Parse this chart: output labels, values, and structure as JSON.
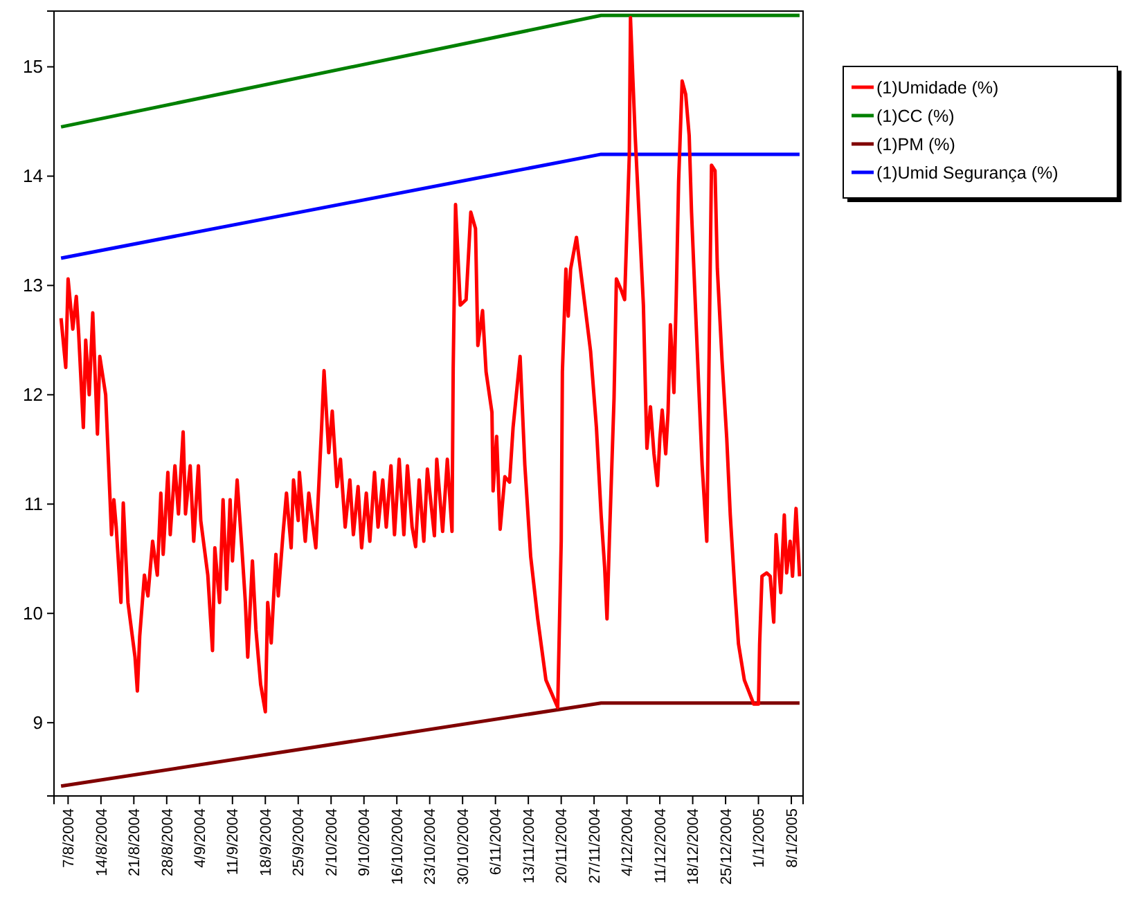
{
  "chart_data": {
    "type": "line",
    "xlim": [
      "2004-08-04",
      "2005-01-10T12:00"
    ],
    "ylim": [
      8.33,
      15.51
    ],
    "yticks": [
      9,
      10,
      11,
      12,
      13,
      14,
      15
    ],
    "xticks": [
      {
        "value": "2004-08-07",
        "label": "7/8/2004"
      },
      {
        "value": "2004-08-14",
        "label": "14/8/2004"
      },
      {
        "value": "2004-08-21",
        "label": "21/8/2004"
      },
      {
        "value": "2004-08-28",
        "label": "28/8/2004"
      },
      {
        "value": "2004-09-04",
        "label": "4/9/2004"
      },
      {
        "value": "2004-09-11",
        "label": "11/9/2004"
      },
      {
        "value": "2004-09-18",
        "label": "18/9/2004"
      },
      {
        "value": "2004-09-25",
        "label": "25/9/2004"
      },
      {
        "value": "2004-10-02",
        "label": "2/10/2004"
      },
      {
        "value": "2004-10-09",
        "label": "9/10/2004"
      },
      {
        "value": "2004-10-16",
        "label": "16/10/2004"
      },
      {
        "value": "2004-10-23",
        "label": "23/10/2004"
      },
      {
        "value": "2004-10-30",
        "label": "30/10/2004"
      },
      {
        "value": "2004-11-06",
        "label": "6/11/2004"
      },
      {
        "value": "2004-11-13",
        "label": "13/11/2004"
      },
      {
        "value": "2004-11-20",
        "label": "20/11/2004"
      },
      {
        "value": "2004-11-27",
        "label": "27/11/2004"
      },
      {
        "value": "2004-12-04",
        "label": "4/12/2004"
      },
      {
        "value": "2004-12-11",
        "label": "11/12/2004"
      },
      {
        "value": "2004-12-18",
        "label": "18/12/2004"
      },
      {
        "value": "2004-12-25",
        "label": "25/12/2004"
      },
      {
        "value": "2005-01-01",
        "label": "1/1/2005"
      },
      {
        "value": "2005-01-08",
        "label": "8/1/2005"
      }
    ],
    "grid": false,
    "legend": "right",
    "marker": "none",
    "line_style": "solid",
    "series": [
      {
        "name": "(1)Umidade (%)",
        "color": "#ff0000",
        "x": [
          "2004-08-05T12:00",
          "2004-08-06T12:00",
          "2004-08-07T00:00",
          "2004-08-08T00:00",
          "2004-08-08T18:00",
          "2004-08-09T06:00",
          "2004-08-10T06:00",
          "2004-08-10T18:00",
          "2004-08-11T12:00",
          "2004-08-12T06:00",
          "2004-08-13T06:00",
          "2004-08-13T18:00",
          "2004-08-15T00:00",
          "2004-08-16T06:00",
          "2004-08-16T18:00",
          "2004-08-17T06:00",
          "2004-08-18T06:00",
          "2004-08-18T18:00",
          "2004-08-19T18:00",
          "2004-08-21T06:00",
          "2004-08-21T18:00",
          "2004-08-22T06:00",
          "2004-08-23T06:00",
          "2004-08-24T00:00",
          "2004-08-25T00:00",
          "2004-08-26T00:00",
          "2004-08-26T18:00",
          "2004-08-27T06:00",
          "2004-08-28T06:00",
          "2004-08-28T18:00",
          "2004-08-29T18:00",
          "2004-08-30T12:00",
          "2004-08-31T12:00",
          "2004-09-01T00:00",
          "2004-09-02T00:00",
          "2004-09-02T18:00",
          "2004-09-03T18:00",
          "2004-09-04T06:00",
          "2004-09-05T18:00",
          "2004-09-06T18:00",
          "2004-09-07T06:00",
          "2004-09-08T06:00",
          "2004-09-09T00:00",
          "2004-09-09T18:00",
          "2004-09-10T12:00",
          "2004-09-11T00:00",
          "2004-09-12T00:00",
          "2004-09-13T00:00",
          "2004-09-13T18:00",
          "2004-09-14T06:00",
          "2004-09-15T06:00",
          "2004-09-16T00:00",
          "2004-09-17T00:00",
          "2004-09-18T00:00",
          "2004-09-18T12:00",
          "2004-09-19T06:00",
          "2004-09-20T06:00",
          "2004-09-20T18:00",
          "2004-09-21T18:00",
          "2004-09-22T12:00",
          "2004-09-23T12:00",
          "2004-09-24T00:00",
          "2004-09-25T00:00",
          "2004-09-25T06:00",
          "2004-09-26T12:00",
          "2004-09-27T06:00",
          "2004-09-28T18:00",
          "2004-09-30T00:00",
          "2004-09-30T12:00",
          "2004-10-01T12:00",
          "2004-10-02T06:00",
          "2004-10-03T06:00",
          "2004-10-04T00:00",
          "2004-10-05T00:00",
          "2004-10-06T00:00",
          "2004-10-06T18:00",
          "2004-10-07T18:00",
          "2004-10-08T12:00",
          "2004-10-09T12:00",
          "2004-10-10T06:00",
          "2004-10-11T06:00",
          "2004-10-12T00:00",
          "2004-10-13T00:00",
          "2004-10-13T18:00",
          "2004-10-14T18:00",
          "2004-10-15T12:00",
          "2004-10-16T12:00",
          "2004-10-17T12:00",
          "2004-10-18T06:00",
          "2004-10-19T06:00",
          "2004-10-20T00:00",
          "2004-10-20T18:00",
          "2004-10-21T18:00",
          "2004-10-22T12:00",
          "2004-10-24T00:00",
          "2004-10-24T12:00",
          "2004-10-25T18:00",
          "2004-10-26T18:00",
          "2004-10-27T18:00",
          "2004-10-28T00:00",
          "2004-10-28T12:00",
          "2004-10-29T12:00",
          "2004-10-30T18:00",
          "2004-10-31T18:00",
          "2004-11-01T18:00",
          "2004-11-02T06:00",
          "2004-11-03T06:00",
          "2004-11-04T00:00",
          "2004-11-05T06:00",
          "2004-11-05T12:00",
          "2004-11-06T06:00",
          "2004-11-07T00:00",
          "2004-11-08T00:00",
          "2004-11-09T00:00",
          "2004-11-09T18:00",
          "2004-11-11T06:00",
          "2004-11-12T06:00",
          "2004-11-13T12:00",
          "2004-11-15T00:00",
          "2004-11-16T18:00",
          "2004-11-19T06:00",
          "2004-11-20T00:00",
          "2004-11-20T06:00",
          "2004-11-21T00:00",
          "2004-11-21T12:00",
          "2004-11-22T00:00",
          "2004-11-23T06:00",
          "2004-11-24T12:00",
          "2004-11-26T06:00",
          "2004-11-27T12:00",
          "2004-11-28T12:00",
          "2004-11-29T06:00",
          "2004-11-29T18:00",
          "2004-11-30T06:00",
          "2004-12-01T06:00",
          "2004-12-01T18:00",
          "2004-12-02T18:00",
          "2004-12-03T12:00",
          "2004-12-04T12:00",
          "2004-12-04T18:00",
          "2004-12-05T06:00",
          "2004-12-05T18:00",
          "2004-12-06T12:00",
          "2004-12-07T12:00",
          "2004-12-08T00:00",
          "2004-12-08T06:00",
          "2004-12-09T00:00",
          "2004-12-09T18:00",
          "2004-12-10T12:00",
          "2004-12-11T00:00",
          "2004-12-11T12:00",
          "2004-12-12T06:00",
          "2004-12-12T18:00",
          "2004-12-13T06:00",
          "2004-12-14T00:00",
          "2004-12-14T12:00",
          "2004-12-15T00:00",
          "2004-12-15T18:00",
          "2004-12-16T12:00",
          "2004-12-17T06:00",
          "2004-12-17T18:00",
          "2004-12-18T06:00",
          "2004-12-19T06:00",
          "2004-12-20T00:00",
          "2004-12-21T00:00",
          "2004-12-21T12:00",
          "2004-12-22T00:00",
          "2004-12-22T18:00",
          "2004-12-23T06:00",
          "2004-12-24T06:00",
          "2004-12-25T06:00",
          "2004-12-26T00:00",
          "2004-12-27T00:00",
          "2004-12-27T18:00",
          "2004-12-29T00:00",
          "2004-12-31T00:00",
          "2005-01-01T00:00",
          "2005-01-01T06:00",
          "2005-01-01T18:00",
          "2005-01-02T18:00",
          "2005-01-03T12:00",
          "2005-01-04T06:00",
          "2005-01-04T18:00",
          "2005-01-05T18:00",
          "2005-01-06T12:00",
          "2005-01-07T00:00",
          "2005-01-07T18:00",
          "2005-01-08T06:00",
          "2005-01-09T00:00",
          "2005-01-09T18:00"
        ],
        "values": [
          12.7,
          12.25,
          13.06,
          12.6,
          12.9,
          12.56,
          11.7,
          12.5,
          12.0,
          12.75,
          11.64,
          12.35,
          12.0,
          10.72,
          11.04,
          10.79,
          10.1,
          11.01,
          10.1,
          9.6,
          9.29,
          9.79,
          10.35,
          10.16,
          10.66,
          10.35,
          11.1,
          10.54,
          11.29,
          10.72,
          11.35,
          10.91,
          11.66,
          10.91,
          11.35,
          10.66,
          11.35,
          10.85,
          10.35,
          9.66,
          10.6,
          10.1,
          11.04,
          10.22,
          11.04,
          10.48,
          11.22,
          10.6,
          10.1,
          9.6,
          10.48,
          9.85,
          9.35,
          9.1,
          10.1,
          9.73,
          10.54,
          10.16,
          10.72,
          11.1,
          10.6,
          11.22,
          10.85,
          11.29,
          10.66,
          11.1,
          10.6,
          11.72,
          12.22,
          11.47,
          11.85,
          11.16,
          11.41,
          10.79,
          11.22,
          10.72,
          11.16,
          10.6,
          11.1,
          10.66,
          11.29,
          10.79,
          11.22,
          10.79,
          11.35,
          10.72,
          11.41,
          10.72,
          11.35,
          10.79,
          10.61,
          11.22,
          10.66,
          11.32,
          10.71,
          11.41,
          10.75,
          11.41,
          10.75,
          12.24,
          13.74,
          12.82,
          12.87,
          13.67,
          13.52,
          12.45,
          12.77,
          12.21,
          11.84,
          11.12,
          11.62,
          10.77,
          11.25,
          11.2,
          11.7,
          12.35,
          11.36,
          10.52,
          9.95,
          9.39,
          9.14,
          10.66,
          12.21,
          13.15,
          12.72,
          13.15,
          13.44,
          13.01,
          12.4,
          11.7,
          10.9,
          10.42,
          9.95,
          10.66,
          11.97,
          13.06,
          12.96,
          12.87,
          14.19,
          15.45,
          14.9,
          14.37,
          13.71,
          12.82,
          11.92,
          11.51,
          11.89,
          11.46,
          11.17,
          11.6,
          11.86,
          11.46,
          11.84,
          12.64,
          12.02,
          12.91,
          13.95,
          14.87,
          14.75,
          14.37,
          13.67,
          13.15,
          12.11,
          11.36,
          10.66,
          12.4,
          14.1,
          14.05,
          13.15,
          12.31,
          11.6,
          10.9,
          10.19,
          9.72,
          9.39,
          9.17,
          9.17,
          9.72,
          10.34,
          10.37,
          10.34,
          9.92,
          10.72,
          10.19,
          10.9,
          10.37,
          10.66,
          10.34,
          10.96,
          10.34
        ]
      },
      {
        "name": "(1)CC (%)",
        "color": "#008000",
        "x": [
          "2004-08-05T12:00",
          "2004-11-28T12:00",
          "2005-01-09T18:00"
        ],
        "values": [
          14.45,
          15.47,
          15.47
        ]
      },
      {
        "name": "(1)PM (%)",
        "color": "#800000",
        "x": [
          "2004-08-05T12:00",
          "2004-11-28T12:00",
          "2005-01-09T18:00"
        ],
        "values": [
          8.42,
          9.18,
          9.18
        ]
      },
      {
        "name": "(1)Umid Segurança (%)",
        "color": "#0000ff",
        "x": [
          "2004-08-05T12:00",
          "2004-11-28T12:00",
          "2005-01-09T18:00"
        ],
        "values": [
          13.25,
          14.2,
          14.2
        ]
      }
    ]
  }
}
